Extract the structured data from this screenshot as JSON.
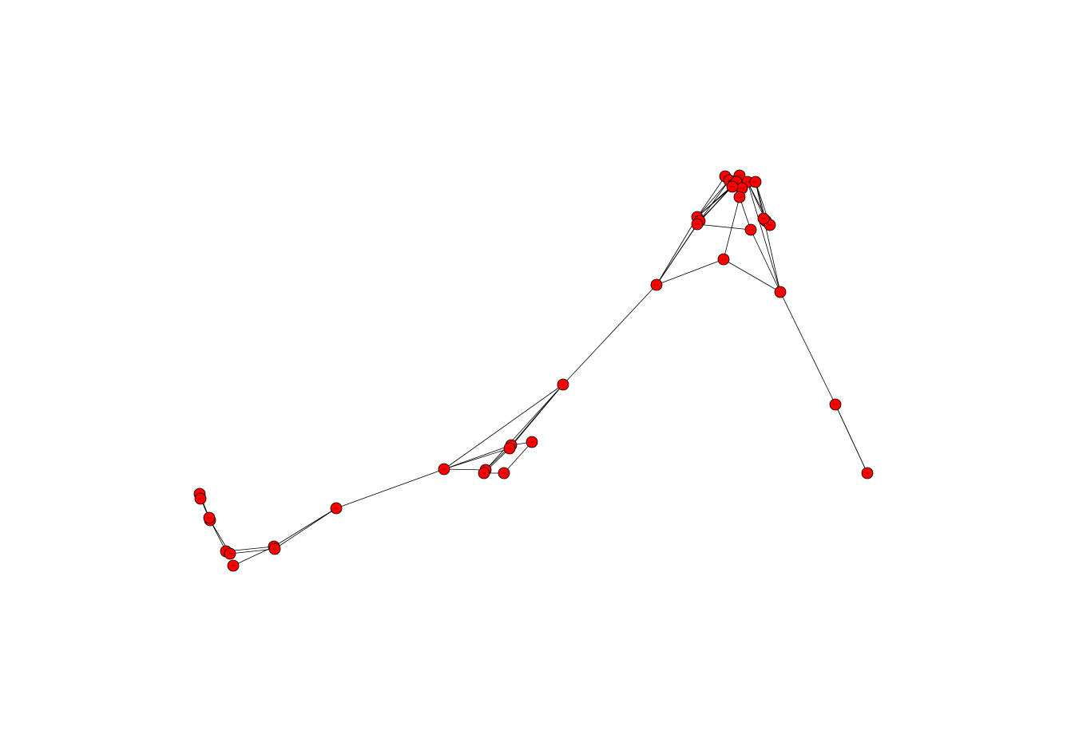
{
  "colors": {
    "background": "#ffffff",
    "node_fill": "#ff0000",
    "node_stroke": "#000000",
    "edge": "#000000"
  },
  "graph": {
    "node_count": 40,
    "edge_count": 70
  }
}
